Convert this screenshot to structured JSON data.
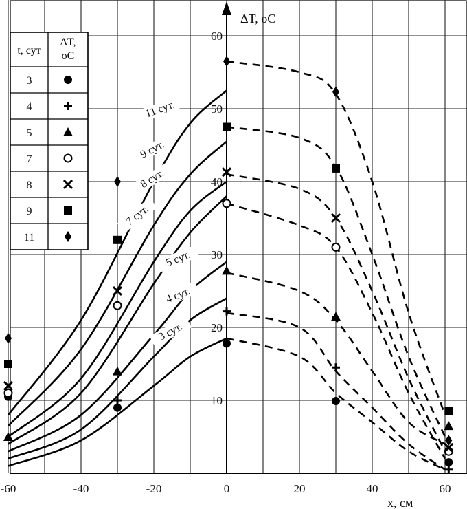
{
  "chart_data": {
    "type": "line",
    "xlabel": "x, см",
    "ylabel": "ΔT, оС",
    "xlim": [
      -60,
      65
    ],
    "ylim": [
      0,
      62
    ],
    "x_ticks": [
      -60,
      -40,
      -20,
      0,
      20,
      40,
      60
    ],
    "x_tick_labels": [
      "-60",
      "-40",
      "-20",
      "0",
      "20",
      "40",
      "60"
    ],
    "y_ticks": [
      10,
      20,
      30,
      40,
      50,
      60
    ],
    "y_tick_labels": [
      "10",
      "20",
      "30",
      "40",
      "50",
      "60"
    ],
    "grid": true,
    "legend": {
      "placement": "top-left",
      "header_col1": "t, сут",
      "header_col2_line1": "ΔT,",
      "header_col2_line2": "оС",
      "rows": [
        {
          "day": "3",
          "marker": "circle-filled"
        },
        {
          "day": "4",
          "marker": "plus"
        },
        {
          "day": "5",
          "marker": "triangle"
        },
        {
          "day": "7",
          "marker": "circle-open"
        },
        {
          "day": "8",
          "marker": "x"
        },
        {
          "day": "9",
          "marker": "square"
        },
        {
          "day": "11",
          "marker": "diamond"
        }
      ]
    },
    "series": [
      {
        "label": "3 сут.",
        "marker": "circle-filled",
        "calc_solid": [
          [
            -60,
            1
          ],
          [
            -40,
            4.5
          ],
          [
            -20,
            12
          ],
          [
            -10,
            16
          ],
          [
            0,
            18.5
          ]
        ],
        "calc_dashed": [
          [
            0,
            18.5
          ],
          [
            20,
            16
          ],
          [
            30,
            11
          ],
          [
            40,
            7
          ],
          [
            50,
            3
          ],
          [
            60,
            0.5
          ]
        ],
        "exp_points": [
          [
            -60,
            10.5
          ],
          [
            -30,
            9
          ],
          [
            0,
            17.8
          ],
          [
            30,
            9.9
          ],
          [
            61,
            1.5
          ]
        ]
      },
      {
        "label": "4 сут.",
        "marker": "plus",
        "calc_solid": [
          [
            -60,
            2
          ],
          [
            -40,
            6
          ],
          [
            -20,
            16
          ],
          [
            -10,
            21
          ],
          [
            0,
            24
          ]
        ],
        "calc_dashed": [
          [
            0,
            22
          ],
          [
            20,
            20
          ],
          [
            30,
            14
          ],
          [
            40,
            9
          ],
          [
            50,
            4
          ],
          [
            60,
            0.5
          ]
        ],
        "exp_points": [
          [
            -60,
            11
          ],
          [
            -30,
            10
          ],
          [
            0,
            22.2
          ],
          [
            30,
            14.5
          ],
          [
            61,
            0.5
          ]
        ]
      },
      {
        "label": "5 сут.",
        "marker": "triangle",
        "calc_solid": [
          [
            -60,
            3
          ],
          [
            -40,
            8
          ],
          [
            -20,
            19
          ],
          [
            -10,
            25
          ],
          [
            0,
            29
          ]
        ],
        "calc_dashed": [
          [
            0,
            27.5
          ],
          [
            20,
            25
          ],
          [
            30,
            21
          ],
          [
            40,
            14
          ],
          [
            50,
            7
          ],
          [
            60,
            4
          ]
        ],
        "exp_points": [
          [
            -60,
            5
          ],
          [
            -30,
            14
          ],
          [
            0,
            27.8
          ],
          [
            30,
            21.5
          ],
          [
            61,
            6.5
          ]
        ]
      },
      {
        "label": "7 сут.",
        "marker": "circle-open",
        "calc_solid": [
          [
            -60,
            4
          ],
          [
            -40,
            11
          ],
          [
            -20,
            26
          ],
          [
            -10,
            33
          ],
          [
            0,
            38
          ]
        ],
        "calc_dashed": [
          [
            0,
            37
          ],
          [
            20,
            34
          ],
          [
            30,
            31
          ],
          [
            40,
            22
          ],
          [
            50,
            11
          ],
          [
            60,
            2
          ]
        ],
        "exp_points": [
          [
            -60,
            11
          ],
          [
            -30,
            23
          ],
          [
            0,
            37
          ],
          [
            30,
            31
          ],
          [
            61,
            3
          ]
        ]
      },
      {
        "label": "8 сут.",
        "marker": "x",
        "calc_solid": [
          [
            -60,
            5
          ],
          [
            -40,
            13
          ],
          [
            -20,
            29
          ],
          [
            -10,
            36
          ],
          [
            0,
            40
          ]
        ],
        "calc_dashed": [
          [
            0,
            41
          ],
          [
            20,
            39
          ],
          [
            30,
            35
          ],
          [
            40,
            25
          ],
          [
            50,
            13
          ],
          [
            60,
            3
          ]
        ],
        "exp_points": [
          [
            -60,
            12
          ],
          [
            -30,
            25
          ],
          [
            0,
            41.3
          ],
          [
            30,
            35
          ],
          [
            61,
            3.5
          ]
        ]
      },
      {
        "label": "9 сут.",
        "marker": "square",
        "calc_solid": [
          [
            -60,
            6.5
          ],
          [
            -40,
            17
          ],
          [
            -20,
            34
          ],
          [
            -10,
            41
          ],
          [
            0,
            45.5
          ]
        ],
        "calc_dashed": [
          [
            0,
            47.5
          ],
          [
            20,
            46
          ],
          [
            30,
            42
          ],
          [
            40,
            30
          ],
          [
            50,
            16
          ],
          [
            60,
            5
          ]
        ],
        "exp_points": [
          [
            -60,
            15
          ],
          [
            -30,
            32
          ],
          [
            0,
            47.5
          ],
          [
            30,
            41.8
          ],
          [
            61,
            8.5
          ]
        ]
      },
      {
        "label": "11 сут.",
        "marker": "diamond",
        "calc_solid": [
          [
            -60,
            8
          ],
          [
            -40,
            21
          ],
          [
            -20,
            40
          ],
          [
            -10,
            48
          ],
          [
            0,
            52.5
          ]
        ],
        "calc_dashed": [
          [
            0,
            56.5
          ],
          [
            20,
            55
          ],
          [
            30,
            52
          ],
          [
            40,
            40
          ],
          [
            50,
            22
          ],
          [
            60,
            8
          ]
        ],
        "exp_points": [
          [
            -60,
            18.5
          ],
          [
            -30,
            40
          ],
          [
            0,
            56.5
          ],
          [
            30,
            52.3
          ],
          [
            61,
            4.5
          ]
        ]
      }
    ]
  }
}
